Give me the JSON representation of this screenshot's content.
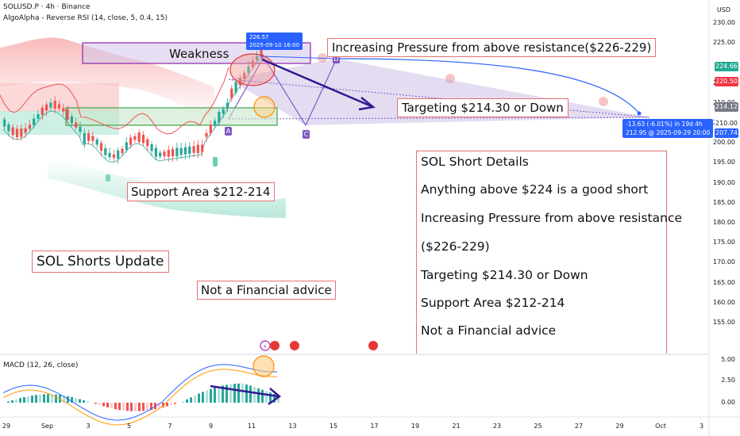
{
  "header": {
    "symbol_line": "SOLUSD.P · 4h · Binance",
    "indicator_line": "AlgoAlpha - Reverse RSI (14, close, 5, 0.4, 15)",
    "currency": "USD",
    "macd_label": "MACD (12, 26, close)"
  },
  "price_axis": {
    "ticks": [
      "230.00",
      "225.00",
      "215.00",
      "210.00",
      "205.00",
      "200.00",
      "195.00",
      "190.00",
      "185.00",
      "180.00",
      "175.00",
      "170.00",
      "165.00",
      "160.00",
      "155.00"
    ],
    "tags": [
      {
        "text": "224.66",
        "color": "#22ab94"
      },
      {
        "text": "220.50",
        "color": "#f23645"
      },
      {
        "text": "214.12",
        "color": "#787b86"
      },
      {
        "text": "210.00",
        "color": "#ffffff"
      },
      {
        "text": "207.74",
        "color": "#2962ff"
      }
    ]
  },
  "macd_axis": {
    "ticks": [
      "5.00",
      "2.50",
      "0.00"
    ]
  },
  "time_axis": {
    "ticks": [
      "29",
      "Sep",
      "3",
      "5",
      "7",
      "9",
      "11",
      "13",
      "15",
      "17",
      "19",
      "21",
      "23",
      "25",
      "27",
      "29",
      "Oct",
      "3"
    ]
  },
  "measure": {
    "price_label": "226.57",
    "date_label": "2025-09-10 16:00",
    "change_label": "-13.63 (-6.01%) in 19d 4h",
    "target_label": "212.95 @ 2025-09-29  20:00"
  },
  "pattern_points": [
    "A",
    "C",
    "D"
  ],
  "annotations": {
    "weakness": "Weakness",
    "pressure": "Increasing Pressure from above resistance($226-229)",
    "target": "Targeting $214.30 or Down",
    "support": "Support Area $212-214",
    "update": "SOL Shorts Update",
    "disclaimer": "Not a Financial advice"
  },
  "details": {
    "title": "SOL Short Details",
    "lines": [
      "Anything above $224 is a good short",
      "Increasing Pressure from above resistance",
      "($226-229)",
      "Targeting $214.30 or Down",
      "Support Area $212-214",
      "Not a Financial advice"
    ]
  },
  "colors": {
    "bull": "#26a69a",
    "bear": "#ef5350",
    "pattern": "#7e57c2",
    "accent": "#2962ff"
  }
}
